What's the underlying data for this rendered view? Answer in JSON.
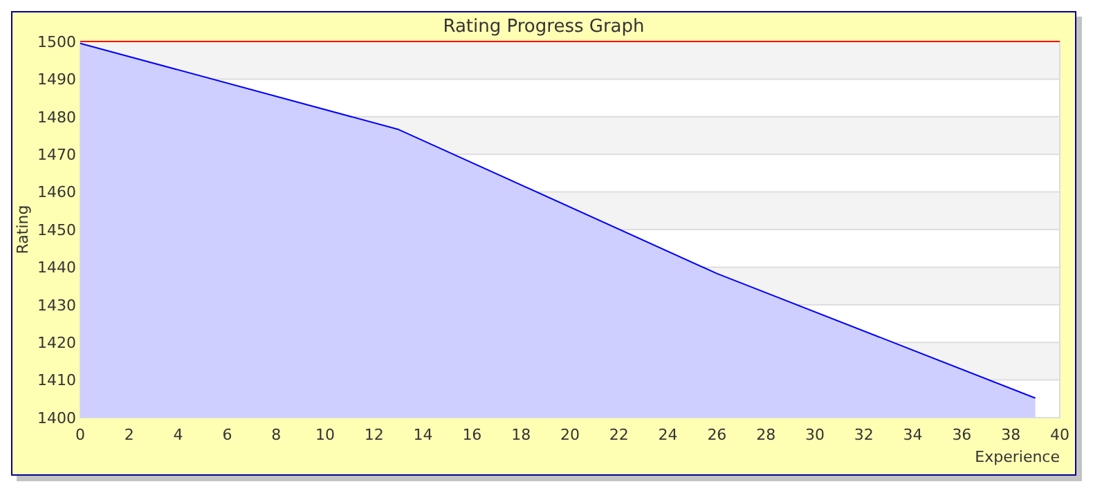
{
  "chart_data": {
    "type": "area",
    "title": "Rating Progress Graph",
    "xlabel": "Experience",
    "ylabel": "Rating",
    "x": [
      0,
      13,
      26,
      39
    ],
    "series": [
      {
        "color": "#0000ff",
        "values": [
          1499.5,
          1476.6,
          1438.3,
          1405.2
        ]
      }
    ],
    "xlim": [
      0,
      40
    ],
    "xticks": [
      0,
      2,
      4,
      6,
      8,
      10,
      12,
      14,
      16,
      18,
      20,
      22,
      24,
      26,
      28,
      30,
      32,
      34,
      36,
      38,
      40
    ],
    "ylim": [
      1400,
      1500
    ],
    "yticks": [
      1400,
      1410,
      1420,
      1430,
      1440,
      1450,
      1460,
      1470,
      1480,
      1490,
      1500
    ],
    "grid": "y",
    "ref_lines": [
      {
        "axis": "y",
        "value": 1500,
        "color": "#ff0000"
      }
    ]
  }
}
